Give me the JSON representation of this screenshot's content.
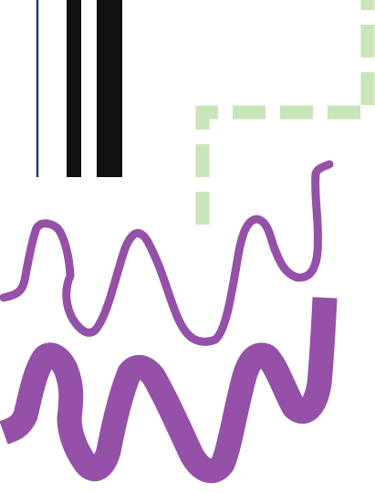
{
  "colors": {
    "background": "#ffffff",
    "thin_line": "#1f3a6b",
    "thick_bars": "#111111",
    "dashed_frame": "#c9e6b8",
    "squiggles": "#9551a8"
  },
  "shapes": [
    {
      "name": "thin-vertical-line",
      "kind": "line"
    },
    {
      "name": "thick-vertical-bar-left",
      "kind": "bar"
    },
    {
      "name": "thick-vertical-bar-right",
      "kind": "bar"
    },
    {
      "name": "dashed-corner-frame",
      "kind": "dashed-polyline"
    },
    {
      "name": "thin-squiggle-line",
      "kind": "wave"
    },
    {
      "name": "thick-squiggle-line",
      "kind": "wave"
    }
  ]
}
